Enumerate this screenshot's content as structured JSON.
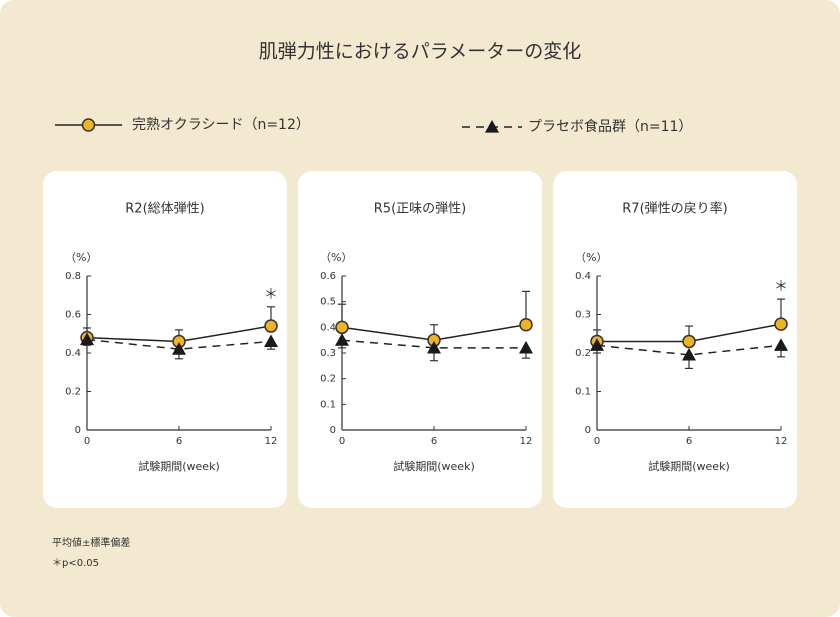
{
  "title": "肌弾力性におけるパラメーターの変化",
  "legend": [
    {
      "name": "完熟オクラシード（n=12）",
      "marker": "circle",
      "color": "#f0b323",
      "dash": false
    },
    {
      "name": "プラセボ食品群（n=11）",
      "marker": "triangle",
      "color": "#1a1a1a",
      "dash": true
    }
  ],
  "footnotes": [
    "平均値±標準偏差",
    "＊p<0.05"
  ],
  "chart_data": [
    {
      "type": "line",
      "title": "R2(総体弾性)",
      "y_label": "（%）",
      "x_label": "試験期間(week)",
      "x": [
        0,
        6,
        12
      ],
      "xlim": [
        0,
        12
      ],
      "xticks": [
        0,
        6,
        12
      ],
      "ylim": [
        0,
        0.8
      ],
      "yticks": [
        0,
        0.2,
        0.4,
        0.6,
        0.8
      ],
      "series": [
        {
          "values": [
            0.48,
            0.46,
            0.54
          ],
          "errors": [
            0.05,
            0.06,
            0.1
          ],
          "error_direction": "up"
        },
        {
          "values": [
            0.47,
            0.42,
            0.46
          ],
          "errors": [
            0.03,
            0.05,
            0.04
          ],
          "error_direction": "down"
        }
      ],
      "annotations": [
        {
          "text": "＊",
          "x": 12
        }
      ]
    },
    {
      "type": "line",
      "title": "R5(正味の弾性)",
      "y_label": "（%）",
      "x_label": "試験期間(week)",
      "x": [
        0,
        6,
        12
      ],
      "xlim": [
        0,
        12
      ],
      "xticks": [
        0,
        6,
        12
      ],
      "ylim": [
        0,
        0.6
      ],
      "yticks": [
        0,
        0.1,
        0.2,
        0.3,
        0.4,
        0.5,
        0.6
      ],
      "series": [
        {
          "values": [
            0.4,
            0.35,
            0.41
          ],
          "errors": [
            0.09,
            0.06,
            0.13
          ],
          "error_direction": "up"
        },
        {
          "values": [
            0.35,
            0.32,
            0.32
          ],
          "errors": [
            0.03,
            0.05,
            0.04
          ],
          "error_direction": "down"
        }
      ],
      "annotations": []
    },
    {
      "type": "line",
      "title": "R7(弾性の戻り率)",
      "y_label": "（%）",
      "x_label": "試験期間(week)",
      "x": [
        0,
        6,
        12
      ],
      "xlim": [
        0,
        12
      ],
      "xticks": [
        0,
        6,
        12
      ],
      "ylim": [
        0,
        0.4
      ],
      "yticks": [
        0,
        0.1,
        0.2,
        0.3,
        0.4
      ],
      "series": [
        {
          "values": [
            0.23,
            0.23,
            0.275
          ],
          "errors": [
            0.03,
            0.04,
            0.065
          ],
          "error_direction": "up"
        },
        {
          "values": [
            0.22,
            0.195,
            0.22
          ],
          "errors": [
            0.02,
            0.035,
            0.03
          ],
          "error_direction": "down"
        }
      ],
      "annotations": [
        {
          "text": "＊",
          "x": 12
        }
      ]
    }
  ]
}
